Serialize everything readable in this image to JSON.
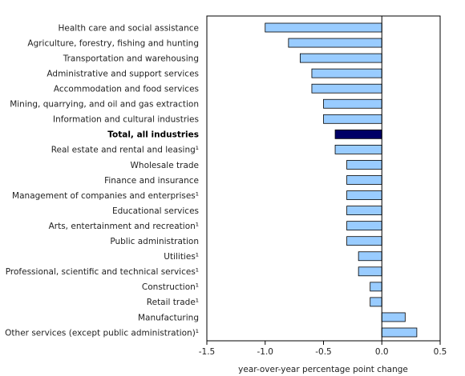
{
  "chart_data": {
    "type": "bar",
    "orientation": "horizontal",
    "categories": [
      "Health care and social assistance",
      "Agriculture, forestry, fishing and hunting",
      "Transportation and warehousing",
      "Administrative and support services",
      "Accommodation and food services",
      "Mining, quarrying, and oil and gas extraction",
      "Information and cultural industries",
      "Total, all industries",
      "Real estate and rental and leasing¹",
      "Wholesale trade",
      "Finance and insurance",
      "Management of companies and enterprises¹",
      "Educational services",
      "Arts, entertainment and recreation¹",
      "Public administration",
      "Utilities¹",
      "Professional, scientific and technical services¹",
      "Construction¹",
      "Retail trade¹",
      "Manufacturing",
      "Other services (except public administration)¹"
    ],
    "values": [
      -1.0,
      -0.8,
      -0.7,
      -0.6,
      -0.6,
      -0.5,
      -0.5,
      -0.4,
      -0.4,
      -0.3,
      -0.3,
      -0.3,
      -0.3,
      -0.3,
      -0.3,
      -0.2,
      -0.2,
      -0.1,
      -0.1,
      0.2,
      0.3
    ],
    "highlight_category": "Total, all industries",
    "xlabel": "year-over-year percentage point change",
    "ylabel": "",
    "xlim": [
      -1.5,
      0.5
    ],
    "ticks": [
      -1.5,
      -1.0,
      -0.5,
      0.0,
      0.5
    ],
    "tick_labels": [
      "-1.5",
      "-1.0",
      "-0.5",
      "0.0",
      "0.5"
    ],
    "grid": false,
    "colors": {
      "bar": "#99ccff",
      "highlight": "#000066",
      "edge": "#000000"
    }
  }
}
